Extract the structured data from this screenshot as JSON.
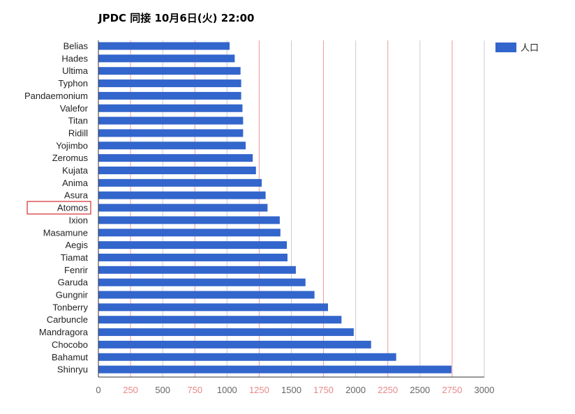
{
  "chart_data": {
    "type": "bar",
    "orientation": "horizontal",
    "title": "JPDC 同接 10月6日(火) 22:00",
    "xlabel": "",
    "ylabel": "",
    "xlim": [
      0,
      3000
    ],
    "x_ticks": [
      "0",
      "250",
      "500",
      "750",
      "1000",
      "1250",
      "1500",
      "1750",
      "2000",
      "2250",
      "2500",
      "2750",
      "3000"
    ],
    "highlighted_category": "Atomos",
    "categories": [
      "Belias",
      "Hades",
      "Ultima",
      "Typhon",
      "Pandaemonium",
      "Valefor",
      "Titan",
      "Ridill",
      "Yojimbo",
      "Zeromus",
      "Kujata",
      "Anima",
      "Asura",
      "Atomos",
      "Ixion",
      "Masamune",
      "Aegis",
      "Tiamat",
      "Fenrir",
      "Garuda",
      "Gungnir",
      "Tonberry",
      "Carbuncle",
      "Mandragora",
      "Chocobo",
      "Bahamut",
      "Shinryu"
    ],
    "series": [
      {
        "name": "人口",
        "values": [
          1020,
          1060,
          1105,
          1110,
          1110,
          1120,
          1125,
          1125,
          1145,
          1200,
          1225,
          1270,
          1300,
          1315,
          1410,
          1415,
          1465,
          1470,
          1535,
          1610,
          1680,
          1785,
          1890,
          1985,
          2120,
          2315,
          2745
        ]
      }
    ],
    "legend_position": "top-right",
    "grid": true,
    "colors": {
      "bar": "#3366cc",
      "grid_major": "#cccccc",
      "grid_alt": "#ee9999",
      "tick_label": "#666666",
      "tick_label_alt": "#e88888",
      "category_label": "#222222",
      "highlight_box": "#cc0000"
    }
  }
}
